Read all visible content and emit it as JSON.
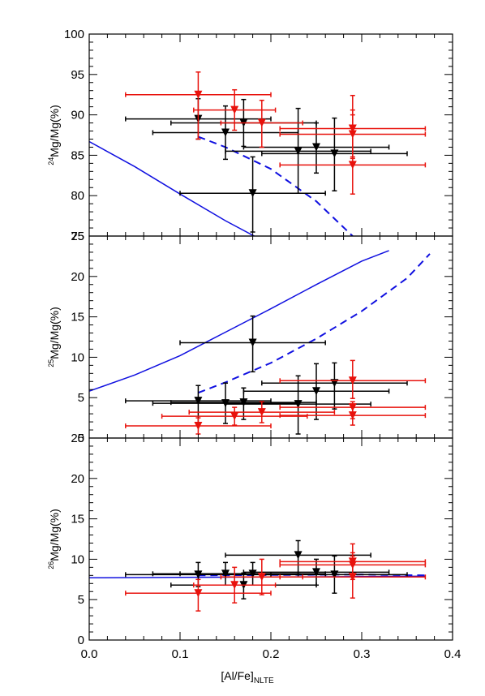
{
  "chart_data": {
    "type": "scatter",
    "x_axis": {
      "label_main": "[Al/Fe]",
      "label_sub": "NLTE",
      "range": [
        0.0,
        0.4
      ],
      "ticks": [
        0.0,
        0.1,
        0.2,
        0.3,
        0.4
      ],
      "tick_labels": [
        "0.0",
        "0.1",
        "0.2",
        "0.3",
        "0.4"
      ]
    },
    "colors": {
      "black_series": "#000000",
      "red_series": "#e8120c",
      "model": "#1010e0"
    },
    "panels": [
      {
        "id": "mg24",
        "ylabel_sup": "24",
        "ylabel_rest": "Mg/Mg(%)",
        "ylim": [
          75,
          100
        ],
        "yticks": [
          75,
          80,
          85,
          90,
          95,
          100
        ],
        "ytick_labels": [
          "75",
          "80",
          "85",
          "90",
          "95",
          "100"
        ],
        "black_points": [
          {
            "x": 0.12,
            "y": 89.5,
            "xerr": 0.08,
            "yerr_lo": 2.5,
            "yerr_hi": 2.5
          },
          {
            "x": 0.15,
            "y": 87.8,
            "xerr": 0.08,
            "yerr_lo": 3.3,
            "yerr_hi": 3.3
          },
          {
            "x": 0.17,
            "y": 89.0,
            "xerr": 0.08,
            "yerr_lo": 2.9,
            "yerr_hi": 2.9
          },
          {
            "x": 0.18,
            "y": 80.3,
            "xerr": 0.08,
            "yerr_lo": 4.8,
            "yerr_hi": 4.5
          },
          {
            "x": 0.23,
            "y": 85.5,
            "xerr": 0.08,
            "yerr_lo": 5.2,
            "yerr_hi": 5.3
          },
          {
            "x": 0.25,
            "y": 86.0,
            "xerr": 0.08,
            "yerr_lo": 3.2,
            "yerr_hi": 3.0
          },
          {
            "x": 0.27,
            "y": 85.2,
            "xerr": 0.08,
            "yerr_lo": 4.6,
            "yerr_hi": 4.4
          }
        ],
        "red_points": [
          {
            "x": 0.12,
            "y": 92.5,
            "xerr": 0.08,
            "yerr_lo": 5.5,
            "yerr_hi": 2.8
          },
          {
            "x": 0.16,
            "y": 90.6,
            "xerr": 0.045,
            "yerr_lo": 2.5,
            "yerr_hi": 2.5
          },
          {
            "x": 0.19,
            "y": 89.0,
            "xerr": 0.045,
            "yerr_lo": 3.0,
            "yerr_hi": 2.8
          },
          {
            "x": 0.29,
            "y": 88.3,
            "xerr": 0.08,
            "yerr_lo": 3.5,
            "yerr_hi": 1.7
          },
          {
            "x": 0.29,
            "y": 87.6,
            "xerr": 0.08,
            "yerr_lo": 3.0,
            "yerr_hi": 3.0
          },
          {
            "x": 0.29,
            "y": 83.8,
            "xerr": 0.08,
            "yerr_lo": 3.6,
            "yerr_hi": 8.6
          }
        ],
        "model_solid": {
          "x": [
            0.0,
            0.05,
            0.1,
            0.15,
            0.185
          ],
          "y": [
            86.7,
            83.6,
            80.2,
            76.9,
            74.8
          ]
        },
        "model_dashed": {
          "x": [
            0.12,
            0.15,
            0.2,
            0.25,
            0.29
          ],
          "y": [
            87.3,
            86.0,
            83.3,
            79.3,
            75.0
          ]
        }
      },
      {
        "id": "mg25",
        "ylabel_sup": "25",
        "ylabel_rest": "Mg/Mg(%)",
        "ylim": [
          0,
          25
        ],
        "yticks": [
          0,
          5,
          10,
          15,
          20,
          25
        ],
        "ytick_labels": [
          "0",
          "5",
          "10",
          "15",
          "20",
          "25"
        ],
        "black_points": [
          {
            "x": 0.12,
            "y": 4.6,
            "xerr": 0.08,
            "yerr_lo": 2.8,
            "yerr_hi": 1.9
          },
          {
            "x": 0.15,
            "y": 4.3,
            "xerr": 0.08,
            "yerr_lo": 2.5,
            "yerr_hi": 2.5
          },
          {
            "x": 0.17,
            "y": 4.4,
            "xerr": 0.08,
            "yerr_lo": 2.1,
            "yerr_hi": 1.8
          },
          {
            "x": 0.18,
            "y": 11.8,
            "xerr": 0.08,
            "yerr_lo": 3.6,
            "yerr_hi": 3.3
          },
          {
            "x": 0.23,
            "y": 4.2,
            "xerr": 0.08,
            "yerr_lo": 3.7,
            "yerr_hi": 3.5
          },
          {
            "x": 0.25,
            "y": 5.8,
            "xerr": 0.08,
            "yerr_lo": 3.5,
            "yerr_hi": 3.4
          },
          {
            "x": 0.27,
            "y": 6.8,
            "xerr": 0.08,
            "yerr_lo": 3.2,
            "yerr_hi": 2.5
          }
        ],
        "red_points": [
          {
            "x": 0.12,
            "y": 1.5,
            "xerr": 0.08,
            "yerr_lo": 1.0,
            "yerr_hi": 1.0
          },
          {
            "x": 0.16,
            "y": 2.7,
            "xerr": 0.08,
            "yerr_lo": 1.1,
            "yerr_hi": 1.1
          },
          {
            "x": 0.19,
            "y": 3.2,
            "xerr": 0.08,
            "yerr_lo": 1.3,
            "yerr_hi": 1.3
          },
          {
            "x": 0.29,
            "y": 7.1,
            "xerr": 0.08,
            "yerr_lo": 2.2,
            "yerr_hi": 2.5
          },
          {
            "x": 0.29,
            "y": 3.8,
            "xerr": 0.08,
            "yerr_lo": 1.4,
            "yerr_hi": 0.7
          },
          {
            "x": 0.29,
            "y": 2.8,
            "xerr": 0.08,
            "yerr_lo": 1.2,
            "yerr_hi": 1.0
          }
        ],
        "model_solid": {
          "x": [
            0.0,
            0.05,
            0.1,
            0.15,
            0.2,
            0.25,
            0.3,
            0.33
          ],
          "y": [
            5.8,
            7.8,
            10.2,
            13.1,
            16.0,
            19.0,
            21.9,
            23.2
          ]
        },
        "model_dashed": {
          "x": [
            0.12,
            0.15,
            0.2,
            0.25,
            0.3,
            0.35,
            0.375
          ],
          "y": [
            5.6,
            6.9,
            9.3,
            12.3,
            15.7,
            19.8,
            22.8
          ]
        }
      },
      {
        "id": "mg26",
        "ylabel_sup": "26",
        "ylabel_rest": "Mg/Mg(%)",
        "ylim": [
          0,
          25
        ],
        "yticks": [
          0,
          5,
          10,
          15,
          20,
          25
        ],
        "ytick_labels": [
          "0",
          "5",
          "10",
          "15",
          "20",
          "25"
        ],
        "black_points": [
          {
            "x": 0.12,
            "y": 8.1,
            "xerr": 0.08,
            "yerr_lo": 1.5,
            "yerr_hi": 1.5
          },
          {
            "x": 0.15,
            "y": 8.2,
            "xerr": 0.08,
            "yerr_lo": 1.4,
            "yerr_hi": 1.4
          },
          {
            "x": 0.17,
            "y": 6.8,
            "xerr": 0.08,
            "yerr_lo": 1.7,
            "yerr_hi": 1.5
          },
          {
            "x": 0.18,
            "y": 8.2,
            "xerr": 0.08,
            "yerr_lo": 1.4,
            "yerr_hi": 1.4
          },
          {
            "x": 0.23,
            "y": 10.5,
            "xerr": 0.08,
            "yerr_lo": 2.3,
            "yerr_hi": 1.8
          },
          {
            "x": 0.25,
            "y": 8.4,
            "xerr": 0.08,
            "yerr_lo": 1.6,
            "yerr_hi": 1.6
          },
          {
            "x": 0.27,
            "y": 8.1,
            "xerr": 0.08,
            "yerr_lo": 2.3,
            "yerr_hi": 2.3
          }
        ],
        "red_points": [
          {
            "x": 0.12,
            "y": 5.8,
            "xerr": 0.08,
            "yerr_lo": 2.2,
            "yerr_hi": 1.7
          },
          {
            "x": 0.16,
            "y": 6.8,
            "xerr": 0.045,
            "yerr_lo": 2.2,
            "yerr_hi": 2.2
          },
          {
            "x": 0.19,
            "y": 7.8,
            "xerr": 0.045,
            "yerr_lo": 2.2,
            "yerr_hi": 2.2
          },
          {
            "x": 0.29,
            "y": 9.7,
            "xerr": 0.08,
            "yerr_lo": 2.2,
            "yerr_hi": 2.2
          },
          {
            "x": 0.29,
            "y": 9.3,
            "xerr": 0.08,
            "yerr_lo": 1.5,
            "yerr_hi": 1.5
          },
          {
            "x": 0.29,
            "y": 7.8,
            "xerr": 0.08,
            "yerr_lo": 2.6,
            "yerr_hi": 2.6
          }
        ],
        "model_solid": {
          "x": [
            0.0,
            0.1,
            0.2,
            0.3,
            0.37
          ],
          "y": [
            7.7,
            7.75,
            7.8,
            7.85,
            7.9
          ]
        },
        "model_dashed": {
          "x": [
            0.12,
            0.2,
            0.3,
            0.37
          ],
          "y": [
            8.0,
            8.05,
            8.1,
            8.0
          ]
        }
      }
    ]
  }
}
